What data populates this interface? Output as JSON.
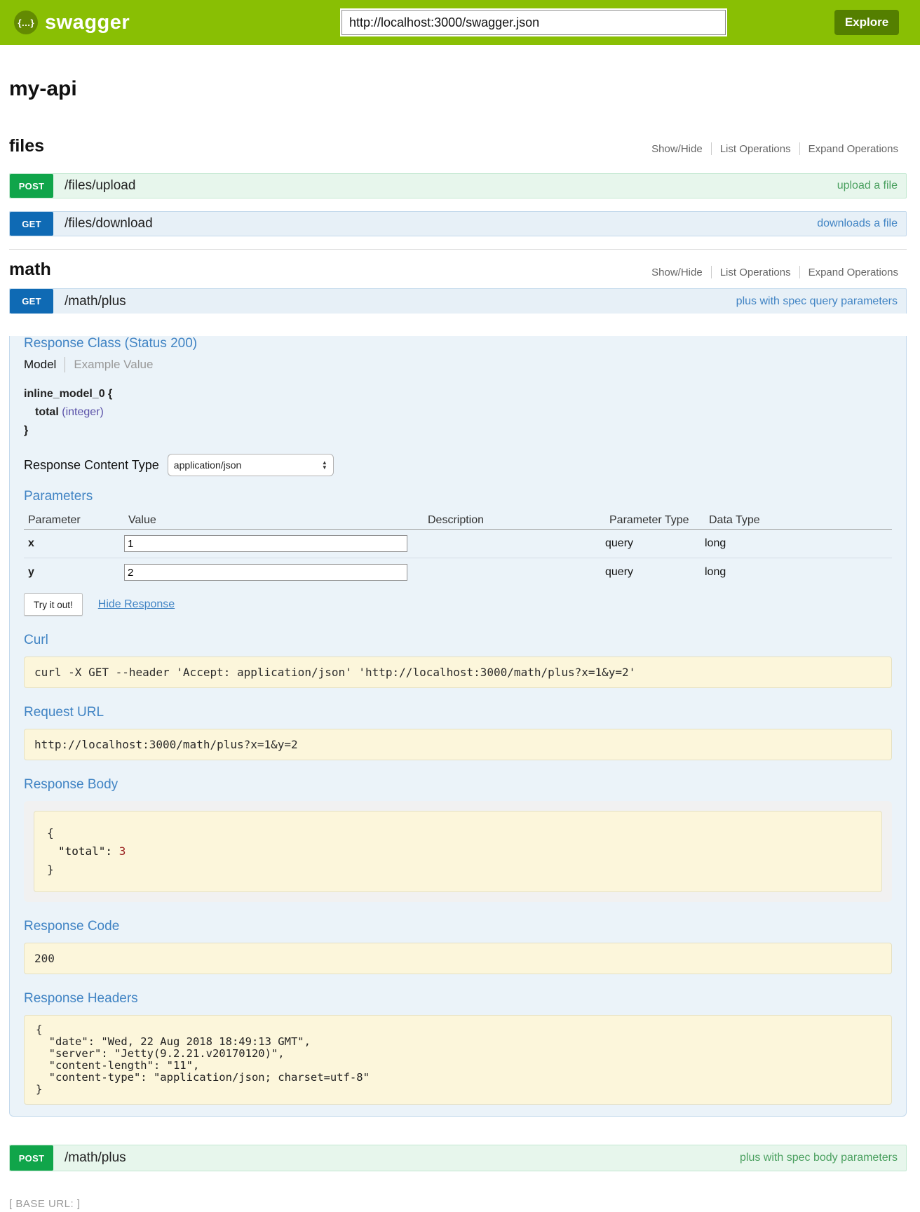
{
  "header": {
    "logo_icon": "{…}",
    "logo_text": "swagger",
    "url_value": "http://localhost:3000/swagger.json",
    "explore_label": "Explore"
  },
  "title": "my-api",
  "controls": {
    "show_hide": "Show/Hide",
    "list_operations": "List Operations",
    "expand_operations": "Expand Operations"
  },
  "files": {
    "heading": "files",
    "post": {
      "method": "POST",
      "path": "/files/upload",
      "summary": "upload a file"
    },
    "get": {
      "method": "GET",
      "path": "/files/download",
      "summary": "downloads a file"
    }
  },
  "math": {
    "heading": "math",
    "get": {
      "method": "GET",
      "path": "/math/plus",
      "summary": "plus with spec query parameters"
    },
    "post": {
      "method": "POST",
      "path": "/math/plus",
      "summary": "plus with spec body parameters"
    }
  },
  "detail": {
    "response_class_heading": "Response Class (Status 200)",
    "tab_model": "Model",
    "tab_example": "Example Value",
    "model": {
      "open": "inline_model_0 {",
      "prop": "total",
      "type": "(integer)",
      "close": "}"
    },
    "content_type_label": "Response Content Type",
    "content_type_value": "application/json",
    "parameters_heading": "Parameters",
    "cols": {
      "parameter": "Parameter",
      "value": "Value",
      "description": "Description",
      "param_type": "Parameter Type",
      "data_type": "Data Type"
    },
    "rows": [
      {
        "name": "x",
        "value": "1",
        "description": "",
        "param_type": "query",
        "data_type": "long"
      },
      {
        "name": "y",
        "value": "2",
        "description": "",
        "param_type": "query",
        "data_type": "long"
      }
    ],
    "try_it_label": "Try it out!",
    "hide_response_label": "Hide Response",
    "curl_heading": "Curl",
    "curl_command": "curl -X GET --header 'Accept: application/json' 'http://localhost:3000/math/plus?x=1&y=2'",
    "request_url_heading": "Request URL",
    "request_url": "http://localhost:3000/math/plus?x=1&y=2",
    "response_body_heading": "Response Body",
    "body": {
      "open": "{",
      "key": "\"total\":",
      "value": "3",
      "close": "}"
    },
    "response_code_heading": "Response Code",
    "response_code": "200",
    "response_headers_heading": "Response Headers",
    "response_headers": "{\n  \"date\": \"Wed, 22 Aug 2018 18:49:13 GMT\",\n  \"server\": \"Jetty(9.2.21.v20170120)\",\n  \"content-length\": \"11\",\n  \"content-type\": \"application/json; charset=utf-8\"\n}"
  },
  "footer": {
    "base_url": "[ BASE URL: ]"
  },
  "colors": {
    "header_green": "#89bf04",
    "explore_green": "#547f00",
    "post_green": "#10a54a",
    "get_blue": "#0f6ab4",
    "link_blue": "#4184c4",
    "panel_bg": "#ebf3f9",
    "code_bg": "#fcf6db"
  }
}
